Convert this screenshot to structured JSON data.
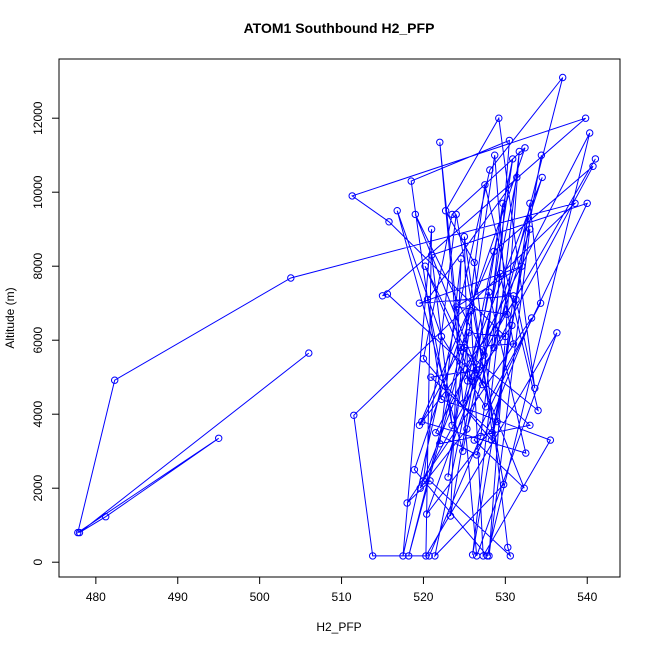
{
  "chart_data": {
    "type": "line",
    "title": "ATOM1 Southbound H2_PFP",
    "xlabel": "H2_PFP",
    "ylabel": "Altitude (m)",
    "xlim": [
      475.5,
      544
    ],
    "ylim": [
      -400,
      13600
    ],
    "xticks": [
      480,
      490,
      500,
      510,
      520,
      530,
      540
    ],
    "yticks": [
      0,
      2000,
      4000,
      6000,
      8000,
      10000,
      12000
    ],
    "grid": false,
    "markers": "open-circle",
    "series": [
      {
        "color": "#0000ff",
        "x": [
          506.0,
          478.0,
          481.2,
          495.0,
          477.8,
          482.3,
          503.8,
          538.5,
          511.5,
          513.8,
          520.7,
          527.0,
          529.4,
          531.0,
          525.0,
          518.2,
          525.8,
          527.3,
          535.5,
          522.2,
          518.5,
          530.5,
          528.6,
          537.0,
          528.1,
          517.5,
          521.0,
          520.3,
          536.3,
          526.5,
          522.0,
          524.5,
          534.0,
          527.5,
          523.0,
          528.7,
          530.2,
          524.0,
          532.0,
          519.5,
          531.0,
          529.0,
          520.4,
          526.8,
          534.5,
          519.6,
          525.3,
          533.0,
          528.0,
          531.7,
          526.0,
          534.4,
          528.3,
          520.0,
          523.5,
          532.4,
          518.9,
          527.8,
          540.3,
          521.5,
          526.5,
          533.2,
          518.0,
          520.8,
          530.6,
          530.3,
          526.2,
          522.7,
          529.2,
          533.6,
          531.3,
          519.5,
          528.6,
          540.7,
          520.0,
          524.0,
          529.8,
          521.4,
          528.0,
          532.5,
          519.8,
          525.5,
          530.0,
          515.8,
          511.3,
          539.8,
          515.0,
          515.6,
          533.0,
          522.0,
          524.6,
          523.3,
          529.7,
          527.2,
          520.2,
          526.0,
          530.8,
          533.0,
          534.3,
          527.6,
          522.2,
          516.8,
          524.8,
          531.4,
          520.5,
          523.5,
          521.0,
          540.0,
          526.2,
          532.3,
          519.0,
          527.4,
          530.9,
          524.9,
          526.5,
          520.9,
          528.4,
          525.0,
          525.4,
          541.0
        ],
        "y": [
          5650,
          800,
          1230,
          3350,
          800,
          4920,
          7680,
          9700,
          3970,
          170,
          170,
          3400,
          7800,
          5900,
          5800,
          170,
          6800,
          170,
          3300,
          4400,
          10300,
          11400,
          5800,
          13100,
          10600,
          170,
          9000,
          170,
          6200,
          170,
          11350,
          5800,
          4100,
          10200,
          2300,
          11000,
          6700,
          6900,
          8000,
          7000,
          7200,
          3800,
          1300,
          5200,
          10400,
          2000,
          3600,
          9000,
          170,
          11100,
          200,
          11000,
          3300,
          5500,
          9400,
          11200,
          2500,
          170,
          11600,
          3500,
          2900,
          6600,
          1600,
          2200,
          170,
          400,
          8100,
          9500,
          12000,
          4700,
          7100,
          3700,
          8400,
          10700,
          2200,
          9400,
          2100,
          170,
          7300,
          2950,
          3800,
          6200,
          6100,
          9200,
          9900,
          12000,
          7200,
          7250,
          3700,
          3200,
          8200,
          1250,
          9700,
          4800,
          8000,
          4900,
          6400,
          9700,
          7000,
          4200,
          6100,
          9500,
          3000,
          10400,
          7100,
          3700,
          8300,
          9700,
          3300,
          2000,
          9400,
          5600,
          10900,
          4300,
          5200,
          5000,
          3500,
          8800,
          4900,
          10900
        ]
      }
    ]
  }
}
